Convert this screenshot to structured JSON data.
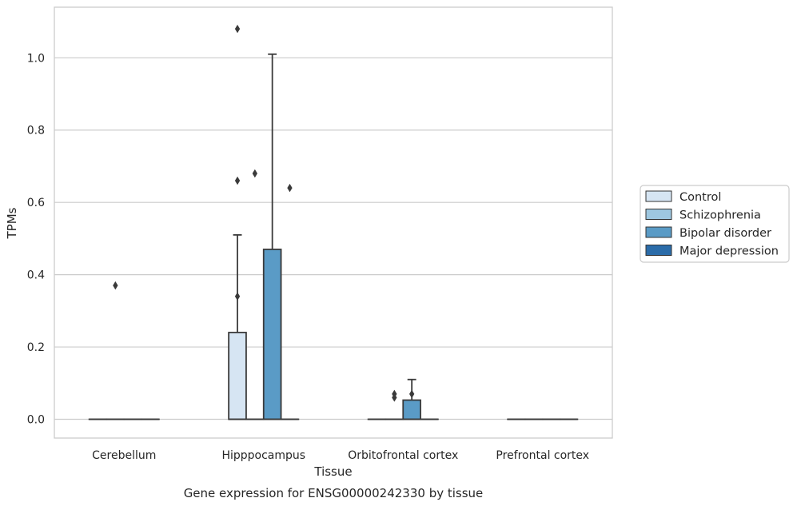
{
  "chart_data": {
    "type": "box",
    "title": "",
    "xlabel": "Tissue",
    "ylabel": "TPMs",
    "caption": "Gene expression for ENSG00000242330 by tissue",
    "ylim": [
      -0.052,
      1.14
    ],
    "yticks": [
      0.0,
      0.2,
      0.4,
      0.6,
      0.8,
      1.0
    ],
    "ytick_labels": [
      "0.0",
      "0.2",
      "0.4",
      "0.6",
      "0.8",
      "1.0"
    ],
    "grid": "horizontal",
    "legend_position": "right",
    "categories": [
      "Cerebellum",
      "Hipppocampus",
      "Orbitofrontal cortex",
      "Prefrontal cortex"
    ],
    "series": [
      {
        "name": "Control",
        "color": "#d6e5f3",
        "boxes": [
          {
            "category": "Cerebellum",
            "min": 0,
            "q1": 0,
            "median": 0,
            "q3": 0,
            "max": 0,
            "outliers": []
          },
          {
            "category": "Hipppocampus",
            "min": 0,
            "q1": 0,
            "median": 0,
            "q3": 0.24,
            "max": 0.51,
            "outliers": [
              1.08,
              0.66,
              0.34
            ]
          },
          {
            "category": "Orbitofrontal cortex",
            "min": 0,
            "q1": 0,
            "median": 0,
            "q3": 0,
            "max": 0,
            "outliers": []
          },
          {
            "category": "Prefrontal cortex",
            "min": 0,
            "q1": 0,
            "median": 0,
            "q3": 0,
            "max": 0,
            "outliers": []
          }
        ]
      },
      {
        "name": "Schizophrenia",
        "color": "#9ec7e0",
        "boxes": [
          {
            "category": "Cerebellum",
            "min": 0,
            "q1": 0,
            "median": 0,
            "q3": 0,
            "max": 0,
            "outliers": [
              0.37
            ]
          },
          {
            "category": "Hipppocampus",
            "min": 0,
            "q1": 0,
            "median": 0,
            "q3": 0,
            "max": 0,
            "outliers": [
              0.68
            ]
          },
          {
            "category": "Orbitofrontal cortex",
            "min": 0,
            "q1": 0,
            "median": 0,
            "q3": 0,
            "max": 0,
            "outliers": [
              0.07,
              0.06
            ]
          },
          {
            "category": "Prefrontal cortex",
            "min": 0,
            "q1": 0,
            "median": 0,
            "q3": 0,
            "max": 0,
            "outliers": []
          }
        ]
      },
      {
        "name": "Bipolar disorder",
        "color": "#5a9bc6",
        "boxes": [
          {
            "category": "Cerebellum",
            "min": 0,
            "q1": 0,
            "median": 0,
            "q3": 0,
            "max": 0,
            "outliers": []
          },
          {
            "category": "Hipppocampus",
            "min": 0,
            "q1": 0,
            "median": 0,
            "q3": 0.47,
            "max": 1.01,
            "outliers": []
          },
          {
            "category": "Orbitofrontal cortex",
            "min": 0,
            "q1": 0,
            "median": 0,
            "q3": 0.053,
            "max": 0.11,
            "outliers": [
              0.07
            ]
          },
          {
            "category": "Prefrontal cortex",
            "min": 0,
            "q1": 0,
            "median": 0,
            "q3": 0,
            "max": 0,
            "outliers": []
          }
        ]
      },
      {
        "name": "Major depression",
        "color": "#2b6ca9",
        "boxes": [
          {
            "category": "Cerebellum",
            "min": 0,
            "q1": 0,
            "median": 0,
            "q3": 0,
            "max": 0,
            "outliers": []
          },
          {
            "category": "Hipppocampus",
            "min": 0,
            "q1": 0,
            "median": 0,
            "q3": 0,
            "max": 0,
            "outliers": [
              0.64
            ]
          },
          {
            "category": "Orbitofrontal cortex",
            "min": 0,
            "q1": 0,
            "median": 0,
            "q3": 0,
            "max": 0,
            "outliers": []
          },
          {
            "category": "Prefrontal cortex",
            "min": 0,
            "q1": 0,
            "median": 0,
            "q3": 0,
            "max": 0,
            "outliers": []
          }
        ]
      }
    ]
  }
}
